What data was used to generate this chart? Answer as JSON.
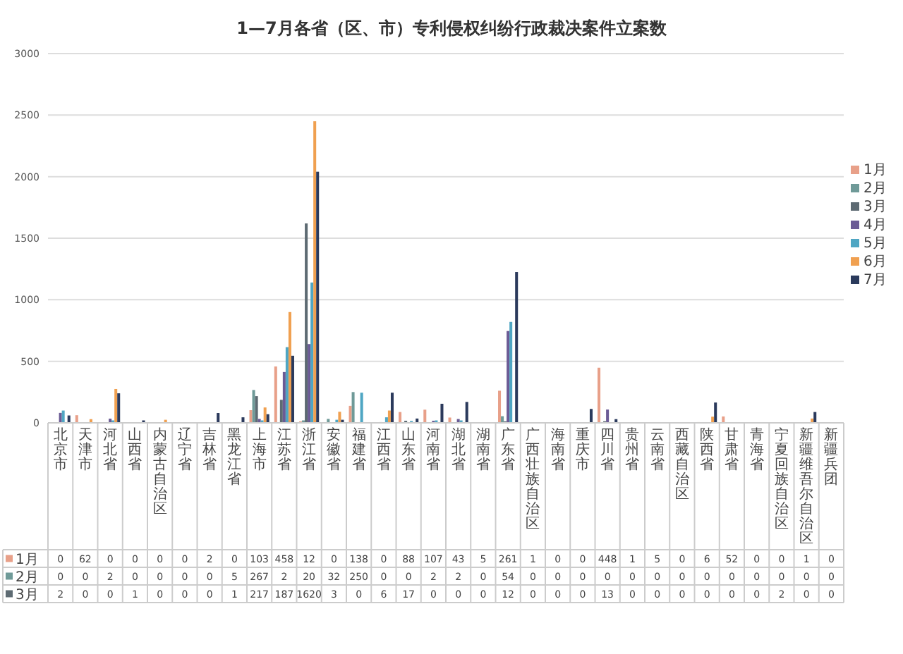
{
  "chart_data": {
    "type": "bar",
    "title": "1—7月各省（区、市）专利侵权纠纷行政裁决案件立案数",
    "categories": [
      "北京市",
      "天津市",
      "河北省",
      "山西省",
      "内蒙古自治区",
      "辽宁省",
      "吉林省",
      "黑龙江省",
      "上海市",
      "江苏省",
      "浙江省",
      "安徽省",
      "福建省",
      "江西省",
      "山东省",
      "河南省",
      "湖北省",
      "湖南省",
      "广东省",
      "广西壮族自治区",
      "海南省",
      "重庆市",
      "四川省",
      "贵州省",
      "云南省",
      "西藏自治区",
      "陕西省",
      "甘肃省",
      "青海省",
      "宁夏回族自治区",
      "新疆维吾尔自治区",
      "新疆兵团"
    ],
    "series": [
      {
        "name": "1月",
        "color": "#e8a089",
        "values": [
          0,
          62,
          0,
          0,
          0,
          0,
          2,
          0,
          103,
          458,
          12,
          0,
          138,
          0,
          88,
          107,
          43,
          5,
          261,
          1,
          0,
          0,
          448,
          1,
          5,
          0,
          6,
          52,
          0,
          0,
          1,
          0
        ],
        "value_labels": [
          "0",
          "62",
          "0",
          "0",
          "0",
          "0",
          "2",
          "0",
          "103",
          "458",
          "12",
          "0",
          "138",
          "0",
          "88",
          "107",
          "43",
          "5",
          "261",
          "1",
          "0",
          "0",
          "448",
          "1",
          "5",
          "0",
          "6",
          "52",
          "0",
          "0",
          "1",
          "0"
        ]
      },
      {
        "name": "2月",
        "color": "#6f9a98",
        "values": [
          0,
          0,
          2,
          0,
          0,
          0,
          0,
          5,
          267,
          2,
          20,
          32,
          250,
          0,
          0,
          2,
          2,
          0,
          54,
          0,
          0,
          0,
          0,
          0,
          0,
          0,
          0,
          0,
          0,
          0,
          0,
          0
        ],
        "value_labels": [
          "0",
          "0",
          "2",
          "0",
          "0",
          "0",
          "0",
          "5",
          "267",
          "2",
          "20",
          "32",
          "250",
          "0",
          "0",
          "2",
          "2",
          "0",
          "54",
          "0",
          "0",
          "0",
          "0",
          "0",
          "0",
          "0",
          "0",
          "0",
          "0",
          "0",
          "0",
          "0"
        ]
      },
      {
        "name": "3月",
        "color": "#5d6a72",
        "values": [
          2,
          0,
          0,
          1,
          0,
          0,
          0,
          1,
          217,
          187,
          1620,
          3,
          0,
          6,
          17,
          0,
          0,
          0,
          12,
          0,
          0,
          0,
          13,
          0,
          0,
          0,
          0,
          0,
          0,
          2,
          0,
          0
        ],
        "value_labels": [
          "2",
          "0",
          "0",
          "1",
          "0",
          "0",
          "0",
          "1",
          "217",
          "187",
          "1620",
          "3",
          "0",
          "6",
          "17",
          "0",
          "0",
          "0",
          "12",
          "0",
          "0",
          "0",
          "13",
          "0",
          "0",
          "0",
          "0",
          "0",
          "0",
          "2",
          "0",
          "0"
        ]
      },
      {
        "name": "4月",
        "color": "#6b5b95",
        "values": [
          81,
          0,
          34,
          0,
          0,
          null,
          0,
          0,
          32,
          413,
          640,
          3,
          0,
          0,
          4,
          17,
          31,
          null,
          746,
          0,
          0,
          0,
          108,
          0,
          0,
          0,
          0,
          0,
          0,
          0,
          0,
          0
        ]
      },
      {
        "name": "5月",
        "color": "#4fa6c3",
        "values": [
          100,
          0,
          20,
          0,
          0,
          0,
          0,
          null,
          20,
          615,
          1140,
          25,
          245,
          45,
          15,
          20,
          20,
          0,
          820,
          0,
          0,
          0,
          0,
          0,
          0,
          0,
          0,
          0,
          0,
          0,
          0,
          0
        ]
      },
      {
        "name": "6月",
        "color": "#f0a050",
        "values": [
          0,
          30,
          275,
          0,
          25,
          0,
          0,
          0,
          125,
          900,
          2450,
          90,
          0,
          100,
          0,
          0,
          0,
          0,
          0,
          0,
          0,
          0,
          0,
          0,
          0,
          0,
          50,
          0,
          0,
          0,
          35,
          0
        ]
      },
      {
        "name": "7月",
        "color": "#2b3a5c",
        "values": [
          60,
          0,
          240,
          20,
          0,
          0,
          80,
          45,
          70,
          545,
          2040,
          25,
          null,
          245,
          35,
          155,
          170,
          0,
          1225,
          0,
          0,
          113,
          30,
          0,
          0,
          0,
          165,
          0,
          0,
          0,
          88,
          0
        ]
      }
    ],
    "ylim": [
      0,
      3000
    ],
    "yticks": [
      0,
      500,
      1000,
      1500,
      2000,
      2500,
      3000
    ],
    "grid": "y",
    "legend": "right"
  }
}
